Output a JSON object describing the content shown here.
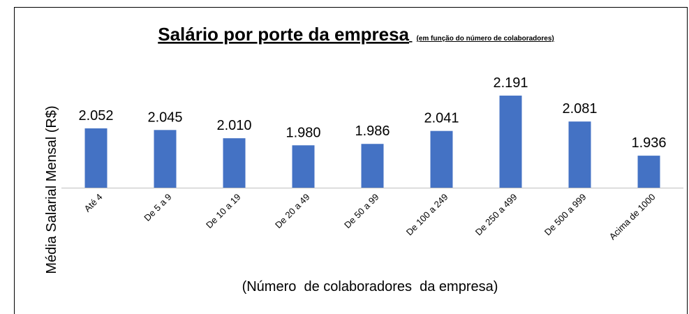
{
  "chart_data": {
    "type": "bar",
    "title": "Salário por porte da empresa",
    "subtitle": "(em função do número de colaboradores)",
    "y_axis_label": "Média Salarial Mensal (R$)",
    "x_axis_label": "(Número  de colaboradores  da empresa)",
    "categories": [
      "Até 4",
      "De 5 a 9",
      "De 10 a 19",
      "De 20 a 49",
      "De 50 a 99",
      "De 100 a 249",
      "De 250 a 499",
      "De 500 a 999",
      "Acima de 1000"
    ],
    "values": [
      2052,
      2045,
      2010,
      1980,
      1986,
      2041,
      2191,
      2081,
      1936
    ],
    "value_labels": [
      "2.052",
      "2.045",
      "2.010",
      "1.980",
      "1.986",
      "2.041",
      "2.191",
      "2.081",
      "1.936"
    ],
    "color": "#4472c4",
    "ylim": [
      1800,
      2200
    ]
  }
}
